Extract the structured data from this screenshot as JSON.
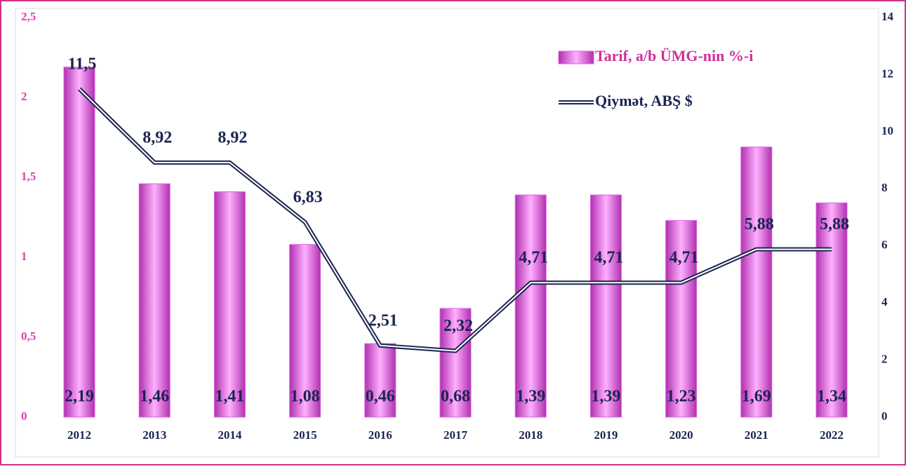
{
  "chart_data": {
    "type": "bar_line",
    "categories": [
      "2012",
      "2013",
      "2014",
      "2015",
      "2016",
      "2017",
      "2018",
      "2019",
      "2020",
      "2021",
      "2022"
    ],
    "series": [
      {
        "name": "Tarif, a/b ÜMG-nin %-i",
        "type": "bar",
        "color": "#e060e0",
        "values": [
          2.19,
          1.46,
          1.41,
          1.08,
          0.46,
          0.68,
          1.39,
          1.39,
          1.23,
          1.69,
          1.34
        ],
        "value_labels": [
          "2,19",
          "1,46",
          "1,41",
          "1,08",
          "0,46",
          "0,68",
          "1,39",
          "1,39",
          "1,23",
          "1,69",
          "1,34"
        ]
      },
      {
        "name": "Qiymət, ABŞ $",
        "type": "line",
        "axis": "y2",
        "color": "#1b2550",
        "values": [
          11.5,
          8.92,
          8.92,
          6.83,
          2.51,
          2.32,
          4.71,
          4.71,
          4.71,
          5.88,
          5.88
        ],
        "value_labels": [
          "11,5",
          "8,92",
          "8,92",
          "6,83",
          "2,51",
          "2,32",
          "4,71",
          "4,71",
          "4,71",
          "5,88",
          "5,88"
        ]
      }
    ],
    "ylim": [
      0,
      2.5
    ],
    "yticks": [
      0,
      {
        "value": 0.5,
        "label": "0,5"
      },
      1,
      {
        "value": 1.5,
        "label": "1,5"
      },
      2,
      {
        "value": 2.5,
        "label": "2,5"
      }
    ],
    "y2lim": [
      0,
      14
    ],
    "y2ticks": [
      0,
      2,
      4,
      6,
      8,
      10,
      12,
      14
    ],
    "legend": "upper right"
  }
}
